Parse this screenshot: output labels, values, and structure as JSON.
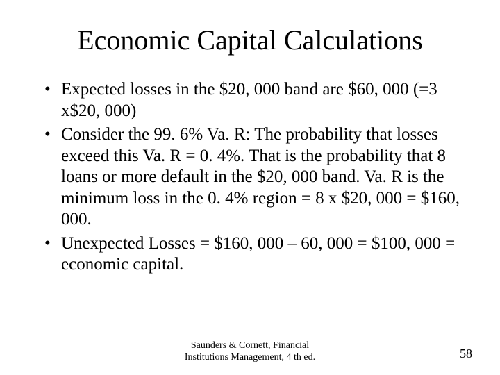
{
  "title": "Economic Capital Calculations",
  "bullets": [
    "Expected losses in the $20, 000 band are $60, 000 (=3 x$20, 000)",
    "Consider the 99. 6% Va. R:  The probability that losses exceed this Va. R = 0. 4%.  That is the probability that 8 loans or more default in the $20, 000 band.  Va. R is the minimum loss in the 0. 4% region = 8 x $20, 000 = $160, 000.",
    "Unexpected Losses = $160, 000 – 60, 000 = $100, 000 = economic capital."
  ],
  "footer": {
    "line1": "Saunders & Cornett, Financial",
    "line2": "Institutions Management, 4 th ed."
  },
  "page_number": "58",
  "style": {
    "background_color": "#ffffff",
    "text_color": "#000000",
    "font_family": "Times New Roman",
    "title_fontsize": 40,
    "body_fontsize": 25,
    "footer_fontsize": 14,
    "page_fontsize": 18
  }
}
